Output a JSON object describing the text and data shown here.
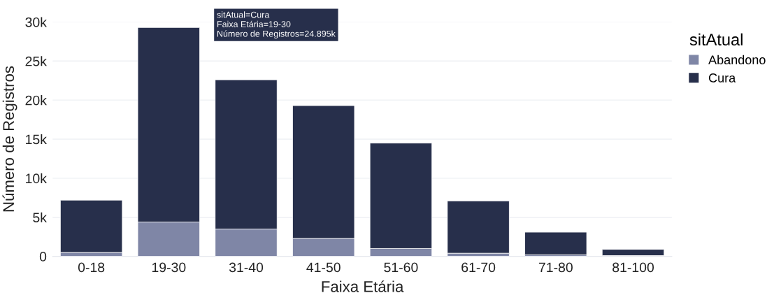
{
  "chart_data": {
    "type": "bar",
    "stacked": true,
    "xlabel": "Faixa Etária",
    "ylabel": "Número de Registros",
    "legend_title": "sitAtual",
    "legend": "top right",
    "categories": [
      "0-18",
      "19-30",
      "31-40",
      "41-50",
      "51-60",
      "61-70",
      "71-80",
      "81-100"
    ],
    "series": [
      {
        "name": "Abandono",
        "color": "#7f86a6",
        "values": [
          500,
          4400,
          3500,
          2300,
          1000,
          400,
          200,
          100
        ]
      },
      {
        "name": "Cura",
        "color": "#272f4b",
        "values": [
          6700,
          24895,
          19100,
          17000,
          13500,
          6700,
          2900,
          800
        ]
      }
    ],
    "ylim": [
      0,
      30000
    ],
    "yticks": [
      {
        "value": 0,
        "label": "0"
      },
      {
        "value": 5000,
        "label": "5k"
      },
      {
        "value": 10000,
        "label": "10k"
      },
      {
        "value": 15000,
        "label": "15k"
      },
      {
        "value": 20000,
        "label": "20k"
      },
      {
        "value": 25000,
        "label": "25k"
      },
      {
        "value": 30000,
        "label": "30k"
      }
    ],
    "grid": "y",
    "annotations": [
      "sitAtual=Cura\nFaixa Etária=19-30\nNúmero de Registros=24.895k"
    ]
  }
}
